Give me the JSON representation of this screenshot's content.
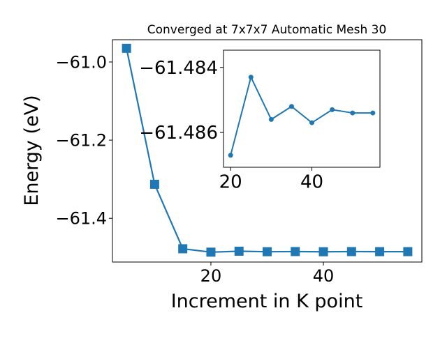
{
  "colors": {
    "series": "#1f77b4",
    "axes": "#000000",
    "background": "#ffffff"
  },
  "chart_data": [
    {
      "type": "line",
      "title": "Converged at 7x7x7 Automatic Mesh 30",
      "xlabel": "Increment in K point",
      "ylabel": "Energy (eV)",
      "xlim": [
        2.5,
        57.5
      ],
      "ylim": [
        -61.512,
        -60.943
      ],
      "xticks": [
        20,
        40
      ],
      "xtick_labels": [
        "20",
        "40"
      ],
      "yticks": [
        -61.0,
        -61.2,
        -61.4
      ],
      "ytick_labels": [
        "−61.0",
        "−61.2",
        "−61.4"
      ],
      "grid": false,
      "marker": "square",
      "series": [
        {
          "x": [
            5,
            10,
            15,
            20,
            25,
            30,
            35,
            40,
            45,
            50,
            55
          ],
          "y": [
            -60.965,
            -61.313,
            -61.478,
            -61.4867,
            -61.4843,
            -61.4856,
            -61.4852,
            -61.4857,
            -61.4853,
            -61.4854,
            -61.4854
          ]
        }
      ]
    },
    {
      "type": "line",
      "title": "",
      "xlabel": "",
      "ylabel": "",
      "xlim": [
        18.25,
        56.75
      ],
      "ylim": [
        -61.48707,
        -61.48347
      ],
      "xticks": [
        20,
        40
      ],
      "xtick_labels": [
        "20",
        "40"
      ],
      "yticks": [
        -61.486,
        -61.484
      ],
      "ytick_labels": [
        "−61.486",
        "−61.484"
      ],
      "grid": false,
      "marker": "circle",
      "series": [
        {
          "x": [
            20,
            25,
            30,
            35,
            40,
            45,
            50,
            55
          ],
          "y": [
            -61.4867,
            -61.4843,
            -61.4856,
            -61.4852,
            -61.4857,
            -61.4853,
            -61.4854,
            -61.4854
          ]
        }
      ]
    }
  ]
}
